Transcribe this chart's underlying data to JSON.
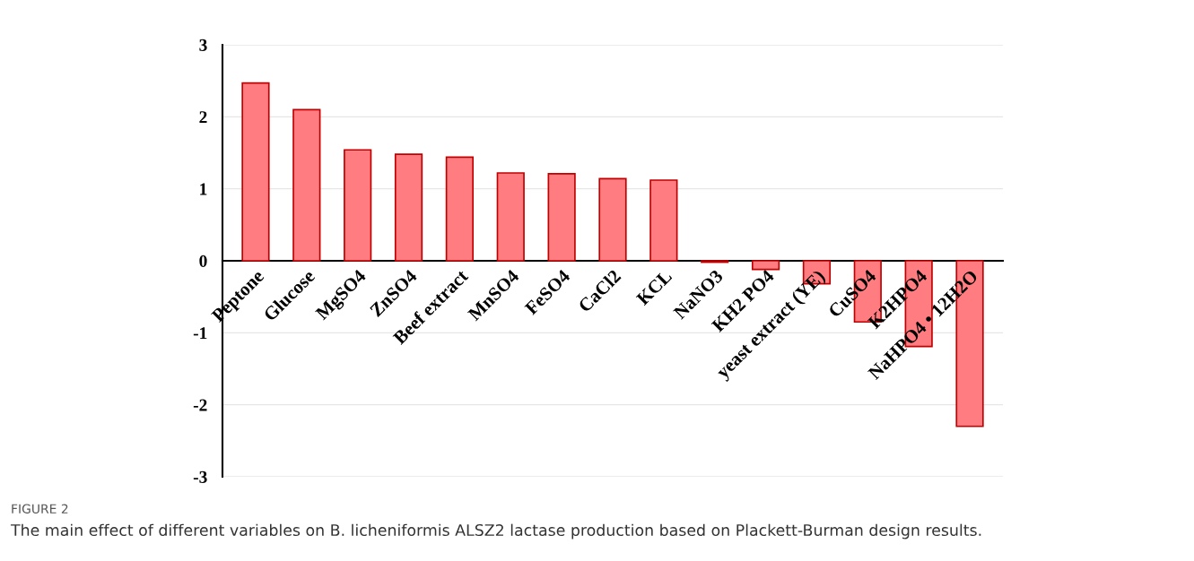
{
  "chart_data": {
    "type": "bar",
    "categories": [
      "Peptone",
      "Glucose",
      "MgSO4",
      "ZnSO4",
      "Beef extract",
      "MnSO4",
      "FeSO4",
      "CaCl2",
      "KCL",
      "NaNO3",
      "KH2 PO4",
      "yeast extract (YE)",
      "CuSO4",
      "K2HPO4",
      "NaHPO4 • 12H2O"
    ],
    "values": [
      2.47,
      2.1,
      1.54,
      1.48,
      1.44,
      1.22,
      1.21,
      1.14,
      1.12,
      -0.02,
      -0.12,
      -0.32,
      -0.85,
      -1.19,
      -2.3
    ],
    "color": "#ff7c80",
    "ylim": [
      -3,
      3
    ],
    "yticks": [
      -3,
      -2,
      -1,
      0,
      1,
      2,
      3
    ],
    "grid": "y",
    "legend": false,
    "annotations": [
      "FIGURE 2",
      "The main effect of different variables on B. licheniformis ALSZ2 lactase production based on Plackett-Burman design results."
    ]
  }
}
